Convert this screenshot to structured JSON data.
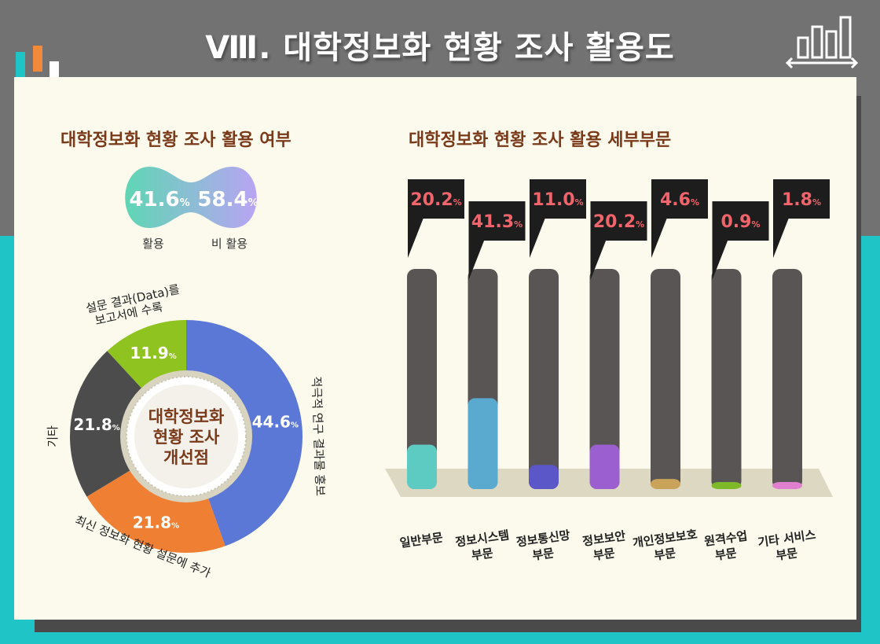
{
  "page": {
    "title": "Ⅷ. 대학정보화 현황 조사 활용도"
  },
  "colors": {
    "header": "#727272",
    "teal": "#1fc5c6",
    "panel": "#fcfaec",
    "brown": "#7a3a1a",
    "pct_red": "#f0646c"
  },
  "icons": [
    "bar-chart-icon"
  ],
  "chart_data": [
    {
      "type": "pie",
      "title": "대학정보화 현황 조사 활용 여부",
      "slices": [
        {
          "label": "활용",
          "value": 41.6,
          "display": "41.6",
          "color": "#5fd6b4"
        },
        {
          "label": "비 활용",
          "value": 58.4,
          "display": "58.4",
          "color": "#b9a4f4"
        }
      ]
    },
    {
      "type": "pie",
      "title": "대학정보화 현황 조사 개선점",
      "center_lines": [
        "대학정보화",
        "현황 조사",
        "개선점"
      ],
      "slices": [
        {
          "label": "적극적 연구 결과물 홍보",
          "value": 44.6,
          "display": "44.6",
          "color": "#5b78d6"
        },
        {
          "label": "최신 정보화 현황 설문에 추가",
          "value": 21.8,
          "display": "21.8",
          "color": "#ef7f33"
        },
        {
          "label": "기타",
          "value": 21.8,
          "display": "21.8",
          "color": "#4c4c4c"
        },
        {
          "label": "설문 결과(Data)를 보고서에 수록",
          "value": 11.9,
          "display": "11.9",
          "color": "#8fc31f"
        }
      ]
    },
    {
      "type": "bar",
      "title": "대학정보화 현황 조사 활용 세부부문",
      "categories": [
        "일반부문",
        "정보시스템 부문",
        "정보통신망 부문",
        "정보보안 부문",
        "개인정보보호 부문",
        "원격수업 부문",
        "기타 서비스 부문"
      ],
      "category_lines": [
        [
          "일반부문"
        ],
        [
          "정보시스템",
          "부문"
        ],
        [
          "정보통신망",
          "부문"
        ],
        [
          "정보보안",
          "부문"
        ],
        [
          "개인정보보호",
          "부문"
        ],
        [
          "원격수업",
          "부문"
        ],
        [
          "기타 서비스",
          "부문"
        ]
      ],
      "values": [
        20.2,
        41.3,
        11.0,
        20.2,
        4.6,
        0.9,
        1.8
      ],
      "value_labels": [
        "20.2",
        "41.3",
        "11.0",
        "20.2",
        "4.6",
        "0.9",
        "1.8"
      ],
      "colors": [
        "#5ecbc3",
        "#5aa9cf",
        "#5b57c9",
        "#9b5fd0",
        "#c9a35a",
        "#7fb92a",
        "#e07fce"
      ],
      "ylim": [
        0,
        100
      ],
      "unit": "%"
    }
  ]
}
